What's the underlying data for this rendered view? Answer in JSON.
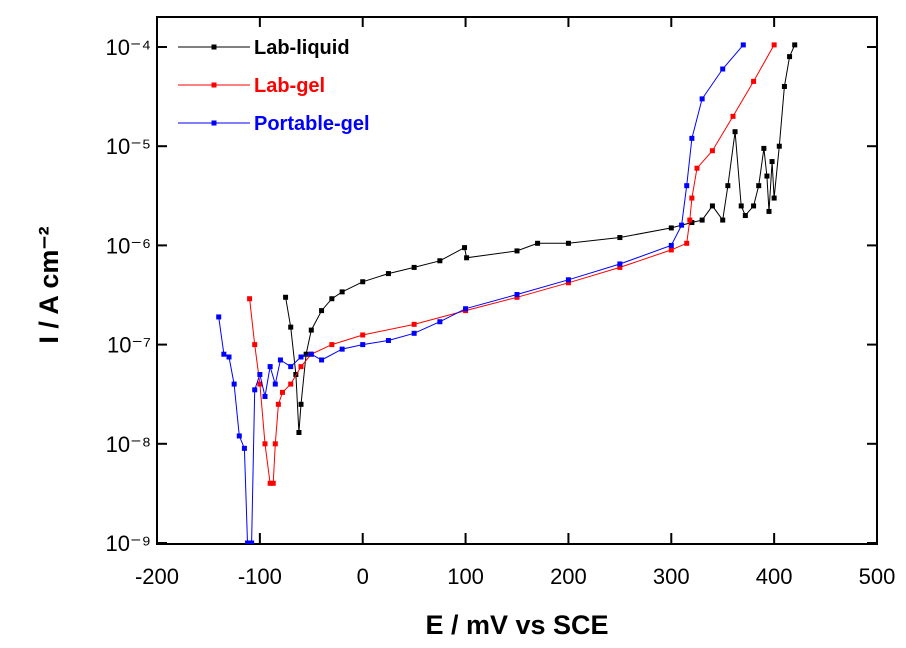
{
  "chart_data": {
    "type": "line",
    "yscale": "log",
    "x_label": "E / mV vs SCE",
    "y_label": "I / A cm⁻²",
    "xlim": [
      -200,
      500
    ],
    "xticks": [
      -200,
      -100,
      0,
      100,
      200,
      300,
      400,
      500
    ],
    "ylim": [
      1e-09,
      0.0001
    ],
    "yticks": [
      {
        "value": 1e-09,
        "label": "10⁻⁹"
      },
      {
        "value": 1e-08,
        "label": "10⁻⁸"
      },
      {
        "value": 1e-07,
        "label": "10⁻⁷"
      },
      {
        "value": 1e-06,
        "label": "10⁻⁶"
      },
      {
        "value": 1e-05,
        "label": "10⁻⁵"
      },
      {
        "value": 0.0001,
        "label": "10⁻⁴"
      }
    ],
    "legend": "upper left",
    "series": [
      {
        "name": "Lab-liquid",
        "color": "#000000",
        "x": [
          -75,
          -70,
          -65,
          -62,
          -60,
          -55,
          -50,
          -40,
          -30,
          -20,
          0,
          25,
          50,
          75,
          99,
          101,
          150,
          170,
          200,
          250,
          300,
          320,
          330,
          340,
          350,
          355,
          362,
          368,
          372,
          380,
          385,
          390,
          393,
          395,
          398,
          400,
          405,
          410,
          415,
          420
        ],
        "values": [
          3e-07,
          1.5e-07,
          5e-08,
          1.3e-08,
          2.5e-08,
          8e-08,
          1.4e-07,
          2.2e-07,
          2.9e-07,
          3.4e-07,
          4.3e-07,
          5.2e-07,
          6e-07,
          7e-07,
          9.5e-07,
          7.5e-07,
          8.8e-07,
          1.05e-06,
          1.05e-06,
          1.2e-06,
          1.5e-06,
          1.7e-06,
          1.8e-06,
          2.5e-06,
          1.8e-06,
          4e-06,
          1.4e-05,
          2.5e-06,
          2e-06,
          2.5e-06,
          4e-06,
          9.5e-06,
          5e-06,
          2.2e-06,
          7e-06,
          3e-06,
          1e-05,
          4e-05,
          8e-05,
          0.000105
        ]
      },
      {
        "name": "Lab-gel",
        "color": "#ff0000",
        "x": [
          -110,
          -105,
          -100,
          -95,
          -90,
          -87,
          -85,
          -82,
          -78,
          -70,
          -60,
          -50,
          -30,
          0,
          50,
          100,
          150,
          200,
          250,
          300,
          315,
          318,
          320,
          325,
          340,
          360,
          380,
          400
        ],
        "values": [
          2.9e-07,
          1e-07,
          4e-08,
          1e-08,
          4e-09,
          4e-09,
          1e-08,
          2.5e-08,
          3.3e-08,
          4e-08,
          6e-08,
          8e-08,
          1e-07,
          1.25e-07,
          1.6e-07,
          2.2e-07,
          3e-07,
          4.2e-07,
          6e-07,
          9e-07,
          1.05e-06,
          1.8e-06,
          3e-06,
          6e-06,
          9e-06,
          2e-05,
          4.5e-05,
          0.000105
        ]
      },
      {
        "name": "Portable-gel",
        "color": "#0000ff",
        "x": [
          -140,
          -135,
          -130,
          -125,
          -120,
          -115,
          -112,
          -108,
          -105,
          -100,
          -95,
          -90,
          -85,
          -80,
          -70,
          -60,
          -50,
          -40,
          -20,
          0,
          25,
          50,
          75,
          100,
          150,
          200,
          250,
          300,
          310,
          315,
          320,
          330,
          350,
          370
        ],
        "values": [
          1.9e-07,
          8e-08,
          7.5e-08,
          4e-08,
          1.2e-08,
          9e-09,
          1e-09,
          1e-09,
          3.5e-08,
          5e-08,
          3e-08,
          6e-08,
          4e-08,
          7e-08,
          6e-08,
          7.5e-08,
          8e-08,
          7e-08,
          9e-08,
          1e-07,
          1.1e-07,
          1.3e-07,
          1.7e-07,
          2.3e-07,
          3.2e-07,
          4.5e-07,
          6.5e-07,
          1e-06,
          1.6e-06,
          4e-06,
          1.2e-05,
          3e-05,
          6e-05,
          0.000105
        ]
      }
    ]
  }
}
